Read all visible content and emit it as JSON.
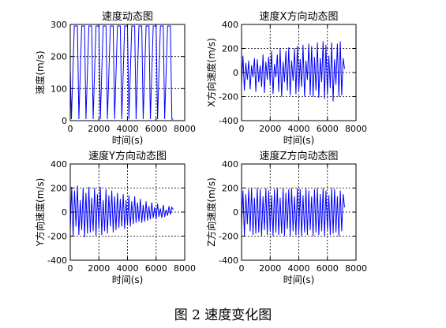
{
  "caption": "图 2  速度变化图",
  "series_color": "#0000ff",
  "chart_data": [
    {
      "type": "line",
      "title": "速度动态图",
      "xlabel": "时间(s)",
      "ylabel": "速度(m/s)",
      "xlim": [
        0,
        8000
      ],
      "ylim": [
        0,
        300
      ],
      "xticks": [
        0,
        2000,
        4000,
        6000,
        8000
      ],
      "yticks": [
        0,
        100,
        200,
        300
      ],
      "grid": true,
      "series": [
        {
          "x": [
            0,
            80,
            280,
            500,
            600,
            800,
            1000,
            1100,
            1300,
            1500,
            1600,
            1800,
            2000,
            2100,
            2300,
            2500,
            2600,
            2800,
            3000,
            3100,
            3300,
            3500,
            3600,
            3800,
            4000,
            4100,
            4300,
            4500,
            4600,
            4800,
            5000,
            5100,
            5300,
            5500,
            5600,
            5800,
            6000,
            6100,
            6300,
            6500,
            6600,
            6800,
            7000,
            7100,
            7200
          ],
          "values": [
            160,
            5,
            295,
            295,
            5,
            295,
            295,
            5,
            295,
            295,
            5,
            295,
            295,
            5,
            295,
            295,
            5,
            295,
            295,
            5,
            295,
            295,
            5,
            295,
            295,
            5,
            295,
            295,
            5,
            295,
            295,
            5,
            295,
            295,
            5,
            295,
            295,
            5,
            295,
            295,
            5,
            295,
            295,
            5,
            5
          ]
        }
      ]
    },
    {
      "type": "line",
      "title": "速度X方向动态图",
      "xlabel": "时间(s)",
      "ylabel": "X方向速度(m/s)",
      "xlim": [
        0,
        8000
      ],
      "ylim": [
        -400,
        400
      ],
      "xticks": [
        0,
        2000,
        4000,
        6000,
        8000
      ],
      "yticks": [
        -400,
        -200,
        0,
        200,
        400
      ],
      "grid": true,
      "series": [
        {
          "x": [
            0,
            100,
            200,
            300,
            400,
            500,
            600,
            700,
            800,
            900,
            1000,
            1100,
            1200,
            1300,
            1400,
            1500,
            1600,
            1700,
            1800,
            1900,
            2000,
            2100,
            2200,
            2300,
            2400,
            2500,
            2600,
            2700,
            2800,
            2900,
            3000,
            3100,
            3200,
            3300,
            3400,
            3500,
            3600,
            3700,
            3800,
            3900,
            4000,
            4100,
            4200,
            4300,
            4400,
            4500,
            4600,
            4700,
            4800,
            4900,
            5000,
            5100,
            5200,
            5300,
            5400,
            5500,
            5600,
            5700,
            5800,
            5900,
            6000,
            6100,
            6200,
            6300,
            6400,
            6500,
            6600,
            6700,
            6800,
            6900,
            7000,
            7100,
            7200
          ],
          "values": [
            -100,
            140,
            -150,
            80,
            -60,
            100,
            -140,
            60,
            -40,
            120,
            -160,
            110,
            -80,
            60,
            -120,
            150,
            -170,
            90,
            -60,
            130,
            -100,
            180,
            -180,
            70,
            -40,
            150,
            -160,
            200,
            -200,
            90,
            -80,
            180,
            -150,
            210,
            -190,
            100,
            -70,
            200,
            -180,
            220,
            -160,
            110,
            -120,
            230,
            -200,
            100,
            -60,
            240,
            -190,
            220,
            -200,
            130,
            -150,
            250,
            -210,
            120,
            -80,
            260,
            -220,
            230,
            -180,
            140,
            -130,
            250,
            -240,
            110,
            -100,
            240,
            -200,
            260,
            -190,
            120,
            30
          ]
        }
      ]
    },
    {
      "type": "line",
      "title": "速度Y方向动态图",
      "xlabel": "时间(s)",
      "ylabel": "Y方向速度(m/s)",
      "xlim": [
        0,
        8000
      ],
      "ylim": [
        -400,
        400
      ],
      "xticks": [
        0,
        2000,
        4000,
        6000,
        8000
      ],
      "yticks": [
        -400,
        -200,
        0,
        200,
        400
      ],
      "grid": true,
      "series": [
        {
          "x": [
            0,
            100,
            200,
            300,
            400,
            500,
            600,
            700,
            800,
            900,
            1000,
            1100,
            1200,
            1300,
            1400,
            1500,
            1600,
            1700,
            1800,
            1900,
            2000,
            2100,
            2200,
            2300,
            2400,
            2500,
            2600,
            2700,
            2800,
            2900,
            3000,
            3100,
            3200,
            3300,
            3400,
            3500,
            3600,
            3700,
            3800,
            3900,
            4000,
            4100,
            4200,
            4300,
            4400,
            4500,
            4600,
            4700,
            4800,
            4900,
            5000,
            5100,
            5200,
            5300,
            5400,
            5500,
            5600,
            5700,
            5800,
            5900,
            6000,
            6100,
            6200,
            6300,
            6400,
            6500,
            6600,
            6700,
            6800,
            6900,
            7000,
            7100,
            7200
          ],
          "values": [
            -150,
            210,
            -200,
            180,
            -120,
            220,
            -190,
            100,
            -150,
            200,
            -210,
            160,
            -180,
            210,
            -170,
            120,
            -160,
            200,
            -200,
            150,
            -140,
            210,
            -190,
            100,
            -160,
            190,
            -180,
            140,
            -120,
            180,
            -170,
            130,
            -150,
            160,
            -130,
            110,
            -120,
            150,
            -140,
            100,
            -110,
            140,
            -120,
            90,
            -100,
            130,
            -90,
            80,
            -80,
            110,
            -90,
            60,
            -80,
            90,
            -70,
            50,
            -60,
            80,
            -50,
            40,
            -60,
            70,
            -40,
            30,
            -50,
            60,
            -40,
            20,
            -30,
            50,
            -20,
            40,
            20
          ]
        }
      ]
    },
    {
      "type": "line",
      "title": "速度Z方向动态图",
      "xlabel": "时间(s)",
      "ylabel": "Z方向速度(m/s)",
      "xlim": [
        0,
        8000
      ],
      "ylim": [
        -400,
        400
      ],
      "xticks": [
        0,
        2000,
        4000,
        6000,
        8000
      ],
      "yticks": [
        -400,
        -200,
        0,
        200,
        400
      ],
      "grid": true,
      "series": [
        {
          "x": [
            0,
            100,
            200,
            300,
            400,
            500,
            600,
            700,
            800,
            900,
            1000,
            1100,
            1200,
            1300,
            1400,
            1500,
            1600,
            1700,
            1800,
            1900,
            2000,
            2100,
            2200,
            2300,
            2400,
            2500,
            2600,
            2700,
            2800,
            2900,
            3000,
            3100,
            3200,
            3300,
            3400,
            3500,
            3600,
            3700,
            3800,
            3900,
            4000,
            4100,
            4200,
            4300,
            4400,
            4500,
            4600,
            4700,
            4800,
            4900,
            5000,
            5100,
            5200,
            5300,
            5400,
            5500,
            5600,
            5700,
            5800,
            5900,
            6000,
            6100,
            6200,
            6300,
            6400,
            6500,
            6600,
            6700,
            6800,
            6900,
            7000,
            7100,
            7200
          ],
          "values": [
            -120,
            180,
            -200,
            150,
            -100,
            190,
            -160,
            200,
            -190,
            120,
            -180,
            200,
            -170,
            190,
            -200,
            130,
            -150,
            200,
            -190,
            180,
            -160,
            140,
            -200,
            190,
            -170,
            200,
            -190,
            120,
            -180,
            200,
            -200,
            160,
            -140,
            190,
            -200,
            200,
            -160,
            130,
            -190,
            200,
            -180,
            190,
            -200,
            140,
            -170,
            200,
            -190,
            180,
            -150,
            130,
            -200,
            190,
            -170,
            200,
            -190,
            150,
            -160,
            200,
            -200,
            180,
            -150,
            140,
            -190,
            200,
            -180,
            190,
            -170,
            130,
            -200,
            180,
            -160,
            150,
            40
          ]
        }
      ]
    }
  ]
}
